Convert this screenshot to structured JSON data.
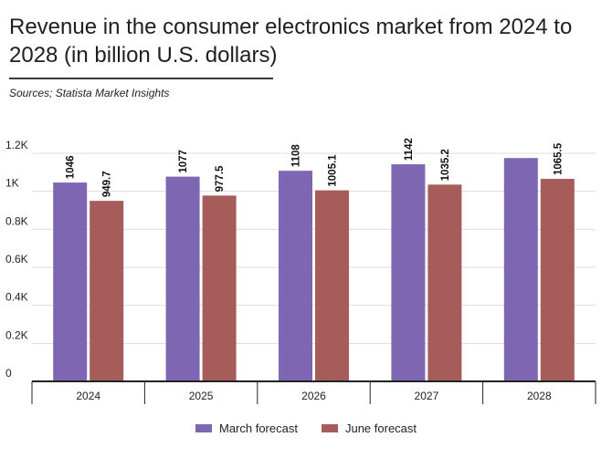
{
  "header": {
    "title": "Revenue in the consumer electronics market from 2024 to 2028 (in billion U.S. dollars)",
    "source": "Sources; Statista Market Insights"
  },
  "colors": {
    "march": "#7f66b2",
    "june": "#a65d5a",
    "grid": "#dddddd",
    "axis": "#222222"
  },
  "chart_data": {
    "type": "bar",
    "title": "Revenue in the consumer electronics market from 2024 to 2028 (in billion U.S. dollars)",
    "categories": [
      "2024",
      "2025",
      "2026",
      "2027",
      "2028"
    ],
    "series": [
      {
        "name": "March forecast",
        "values": [
          1046,
          1077,
          1108,
          1142,
          1175
        ],
        "labels": [
          "1046",
          "1077",
          "1108",
          "1142",
          ""
        ]
      },
      {
        "name": "June forecast",
        "values": [
          949.7,
          977.5,
          1005.1,
          1035.2,
          1065.5
        ],
        "labels": [
          "949.7",
          "977.5",
          "1005.1",
          "1035.2",
          "1065.5"
        ]
      }
    ],
    "yticks": [
      0,
      200,
      400,
      600,
      800,
      1000,
      1200
    ],
    "ytick_labels": [
      "0",
      "0.2K",
      "0.4K",
      "0.6K",
      "0.8K",
      "1K",
      "1.2K"
    ],
    "ylim": [
      0,
      1200
    ],
    "grid": true,
    "legend_position": "bottom-center"
  }
}
